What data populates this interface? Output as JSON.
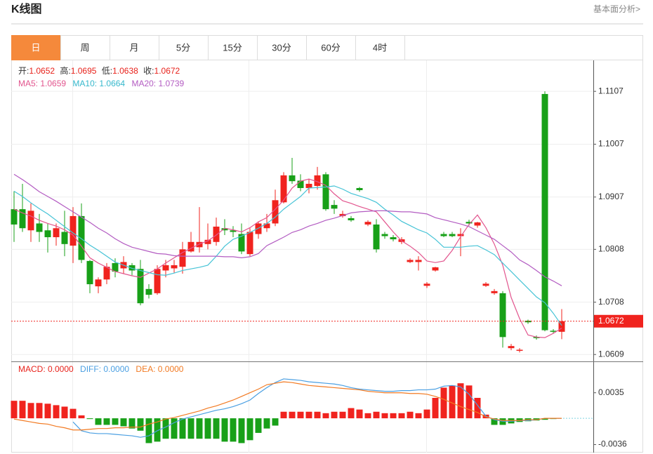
{
  "header": {
    "title": "K线图",
    "link": "基本面分析>"
  },
  "tabs": [
    "日",
    "周",
    "月",
    "5分",
    "15分",
    "30分",
    "60分",
    "4时"
  ],
  "info": {
    "ohlc": [
      {
        "label": "开:",
        "value": "1.0652"
      },
      {
        "label": "高:",
        "value": "1.0695"
      },
      {
        "label": "低:",
        "value": "1.0638"
      },
      {
        "label": "收:",
        "value": "1.0672"
      }
    ],
    "ma": [
      {
        "label": "MA5: ",
        "value": "1.0659"
      },
      {
        "label": "MA10: ",
        "value": "1.0664"
      },
      {
        "label": "MA20: ",
        "value": "1.0739"
      }
    ],
    "macd": [
      {
        "label": "MACD: ",
        "value": "0.0000"
      },
      {
        "label": "DIFF: ",
        "value": "0.0000"
      },
      {
        "label": "DEA: ",
        "value": "0.0000"
      }
    ]
  },
  "chart_data": [
    {
      "type": "candlestick",
      "up_color": "#f0231e",
      "down_color": "#18a018",
      "grid": true,
      "ylim": [
        1.0596,
        1.1163
      ],
      "yticks": [
        1.0609,
        1.0708,
        1.0808,
        1.0907,
        1.1007,
        1.1107
      ],
      "last_price": 1.0672,
      "last_price_color": "#f0231e",
      "open": [
        1.0884,
        1.0884,
        1.0844,
        1.0857,
        1.0844,
        1.0831,
        1.0841,
        1.0815,
        1.0871,
        1.0786,
        1.0738,
        1.0751,
        1.0782,
        1.0772,
        1.0778,
        1.0771,
        1.0733,
        1.0725,
        1.0768,
        1.0772,
        1.0775,
        1.0804,
        1.0812,
        1.0818,
        1.0822,
        1.0848,
        1.0844,
        1.0837,
        1.0799,
        1.0837,
        1.0848,
        1.0857,
        1.0897,
        1.0948,
        1.0938,
        1.0924,
        1.0928,
        1.095,
        1.0892,
        1.0871,
        1.0867,
        1.0924,
        1.0855,
        1.0855,
        1.0837,
        1.0831,
        1.0822,
        1.0784,
        1.0784,
        1.0739,
        1.0768,
        1.0837,
        1.0837,
        1.0833,
        1.086,
        1.0853,
        1.0739,
        1.0725,
        1.0725,
        1.0621,
        1.0616,
        1.0673,
        1.0642,
        1.1102,
        1.0654,
        1.0652
      ],
      "high": [
        1.0918,
        1.0932,
        1.0895,
        1.0875,
        1.0857,
        1.0857,
        1.0881,
        1.0888,
        1.0895,
        1.0788,
        1.0755,
        1.0782,
        1.0791,
        1.0795,
        1.0782,
        1.0788,
        1.0742,
        1.0778,
        1.0788,
        1.0788,
        1.0822,
        1.0841,
        1.0888,
        1.0857,
        1.0868,
        1.0865,
        1.0852,
        1.0857,
        1.0848,
        1.0861,
        1.0875,
        1.0921,
        1.0954,
        1.0981,
        1.095,
        1.0941,
        1.0964,
        1.0954,
        1.0901,
        1.0881,
        1.0871,
        1.0926,
        1.0863,
        1.0865,
        1.0841,
        1.0835,
        1.0831,
        1.0791,
        1.0795,
        1.0746,
        1.0775,
        1.0841,
        1.0841,
        1.0848,
        1.0864,
        1.086,
        1.0746,
        1.0733,
        1.0729,
        1.0629,
        1.0621,
        1.0675,
        1.0645,
        1.1107,
        1.0657,
        1.0695
      ],
      "low": [
        1.0822,
        1.0841,
        1.0822,
        1.0822,
        1.0802,
        1.0815,
        1.0795,
        1.0782,
        1.0782,
        1.0725,
        1.0725,
        1.0742,
        1.0755,
        1.0762,
        1.0759,
        1.0702,
        1.0715,
        1.0722,
        1.0755,
        1.0764,
        1.0762,
        1.0802,
        1.0802,
        1.0808,
        1.0815,
        1.0835,
        1.0831,
        1.0799,
        1.0795,
        1.0828,
        1.0841,
        1.0852,
        1.0895,
        1.0932,
        1.0918,
        1.0914,
        1.0921,
        1.0881,
        1.0875,
        1.0868,
        1.086,
        1.0917,
        1.0852,
        1.0802,
        1.0828,
        1.0823,
        1.0818,
        1.0782,
        1.0768,
        1.0735,
        1.0766,
        1.0831,
        1.0831,
        1.0795,
        1.0853,
        1.0849,
        1.0737,
        1.0722,
        1.0622,
        1.0617,
        1.0613,
        1.0667,
        1.0637,
        1.0653,
        1.0649,
        1.0638
      ],
      "close": [
        1.0855,
        1.0848,
        1.0881,
        1.0841,
        1.0831,
        1.0848,
        1.0818,
        1.0871,
        1.0788,
        1.0742,
        1.0751,
        1.0775,
        1.0766,
        1.0784,
        1.0768,
        1.0706,
        1.0722,
        1.0771,
        1.0778,
        1.0778,
        1.0808,
        1.0822,
        1.0822,
        1.0826,
        1.0851,
        1.0844,
        1.0841,
        1.0804,
        1.0841,
        1.0857,
        1.0857,
        1.0901,
        1.0948,
        1.0937,
        1.0924,
        1.0932,
        1.0948,
        1.0884,
        1.0885,
        1.0875,
        1.0863,
        1.092,
        1.086,
        1.0808,
        1.0833,
        1.0827,
        1.0827,
        1.0788,
        1.0788,
        1.0743,
        1.0774,
        1.0833,
        1.0833,
        1.0837,
        1.0857,
        1.0859,
        1.0743,
        1.0729,
        1.0642,
        1.0625,
        1.0618,
        1.067,
        1.064,
        1.0655,
        1.0652,
        1.0672
      ],
      "series": [
        {
          "color": "#e2558e",
          "values": [
            1.0884,
            1.0877,
            1.0871,
            1.0863,
            1.0857,
            1.0852,
            1.0845,
            1.0835,
            1.0814,
            1.0792,
            1.0782,
            1.0774,
            1.0766,
            1.0762,
            1.0758,
            1.0755,
            1.0763,
            1.0771,
            1.0782,
            1.0792,
            1.0802,
            1.081,
            1.0818,
            1.0824,
            1.0835,
            1.0848,
            1.0845,
            1.0841,
            1.0849,
            1.086,
            1.0868,
            1.0884,
            1.0901,
            1.0924,
            1.0937,
            1.0941,
            1.0936,
            1.0929,
            1.0913,
            1.09,
            1.0895,
            1.0889,
            1.0884,
            1.0879,
            1.086,
            1.0841,
            1.0824,
            1.0814,
            1.0802,
            1.0786,
            1.0783,
            1.0786,
            1.0806,
            1.0832,
            1.0855,
            1.0873,
            1.0849,
            1.0818,
            1.0778,
            1.0717,
            1.0677,
            1.0646,
            1.0642,
            1.0641,
            1.0649,
            1.0659
          ]
        },
        {
          "color": "#45c3d6",
          "values": [
            1.0918,
            1.0908,
            1.0896,
            1.0885,
            1.0875,
            1.0863,
            1.0851,
            1.0839,
            1.0828,
            1.0816,
            1.0806,
            1.0795,
            1.0784,
            1.0778,
            1.0772,
            1.0768,
            1.0764,
            1.076,
            1.0759,
            1.0763,
            1.0768,
            1.0771,
            1.0774,
            1.0778,
            1.0795,
            1.0814,
            1.0827,
            1.0833,
            1.084,
            1.0848,
            1.0857,
            1.0869,
            1.0884,
            1.0896,
            1.0908,
            1.0924,
            1.0925,
            1.0926,
            1.0928,
            1.0922,
            1.0914,
            1.0909,
            1.0904,
            1.0897,
            1.0884,
            1.0873,
            1.0861,
            1.0853,
            1.0845,
            1.0839,
            1.0827,
            1.0812,
            1.0812,
            1.0812,
            1.0814,
            1.0815,
            1.0807,
            1.0798,
            1.0782,
            1.0766,
            1.075,
            1.0734,
            1.0718,
            1.0707,
            1.0687,
            1.0664
          ]
        },
        {
          "color": "#b35cc2",
          "values": [
            1.095,
            1.094,
            1.0929,
            1.0917,
            1.0908,
            1.0899,
            1.0889,
            1.0879,
            1.0869,
            1.0859,
            1.0848,
            1.0839,
            1.0828,
            1.0819,
            1.0812,
            1.0808,
            1.0804,
            1.08,
            1.0799,
            1.0796,
            1.0795,
            1.0795,
            1.0795,
            1.0795,
            1.0795,
            1.0794,
            1.0794,
            1.0792,
            1.0794,
            1.08,
            1.0815,
            1.0823,
            1.0831,
            1.084,
            1.0845,
            1.0852,
            1.0857,
            1.0863,
            1.0867,
            1.0872,
            1.0877,
            1.0879,
            1.088,
            1.0881,
            1.0881,
            1.088,
            1.0879,
            1.0879,
            1.0877,
            1.0875,
            1.0868,
            1.0864,
            1.086,
            1.0856,
            1.0851,
            1.0843,
            1.0835,
            1.0827,
            1.0815,
            1.0803,
            1.0788,
            1.0779,
            1.0768,
            1.0756,
            1.0748,
            1.0739
          ]
        }
      ]
    },
    {
      "type": "macd",
      "up_color": "#f0231e",
      "down_color": "#18a018",
      "ylim": [
        -0.0047,
        0.0078
      ],
      "yticks": [
        -0.0036,
        0.0035
      ],
      "values": [
        0.0024,
        0.0024,
        0.0021,
        0.0021,
        0.002,
        0.0018,
        0.0016,
        0.0013,
        0.0004,
        -0.0001,
        -0.0009,
        -0.0009,
        -0.0009,
        -0.0011,
        -0.0014,
        -0.0017,
        -0.0034,
        -0.0032,
        -0.0028,
        -0.0028,
        -0.0028,
        -0.0028,
        -0.0028,
        -0.0028,
        -0.0028,
        -0.0032,
        -0.0032,
        -0.0034,
        -0.003,
        -0.002,
        -0.0014,
        -0.001,
        0.0009,
        0.0009,
        0.0009,
        0.0009,
        0.0009,
        0.0007,
        0.0009,
        0.0009,
        0.0014,
        0.0012,
        0.0007,
        0.0009,
        0.0007,
        0.0007,
        0.0007,
        0.0009,
        0.0007,
        0.0012,
        0.0028,
        0.0042,
        0.0045,
        0.0048,
        0.0045,
        0.0028,
        0.0005,
        -0.0009,
        -0.0009,
        -0.0007,
        -0.0005,
        -0.0004,
        -0.0003,
        -0.0002,
        -0.0001,
        0
      ],
      "series": [
        {
          "color": "#4a9fe2",
          "values": [
            null,
            null,
            null,
            null,
            null,
            null,
            null,
            -0.0005,
            -0.0017,
            -0.002,
            -0.0021,
            -0.0021,
            -0.0022,
            -0.0023,
            -0.0024,
            -0.0026,
            -0.0024,
            -0.0017,
            -0.0012,
            -0.0006,
            -0.0001,
            0.0002,
            0.0005,
            0.0008,
            0.0011,
            0.0013,
            0.0016,
            0.002,
            0.0025,
            0.0034,
            0.0042,
            0.0049,
            0.0054,
            0.0053,
            0.0052,
            0.005,
            0.0049,
            0.0048,
            0.0047,
            0.0045,
            0.0042,
            0.004,
            0.0039,
            0.0038,
            0.0037,
            0.0037,
            0.0038,
            0.0038,
            0.0039,
            0.0039,
            0.004,
            0.0044,
            0.0045,
            0.0043,
            0.0033,
            0.0018,
            0.0003,
            -0.0002,
            -0.0004,
            -0.0004,
            -0.0003,
            -0.0003,
            -0.0002,
            0,
            0,
            0
          ]
        },
        {
          "color": "#f27a22",
          "values": [
            -0.0001,
            -0.0003,
            -0.0005,
            -0.0007,
            -0.0008,
            -0.0011,
            -0.0013,
            -0.0016,
            -0.0016,
            -0.0015,
            -0.0014,
            -0.0014,
            -0.0013,
            -0.0013,
            -0.0012,
            -0.0012,
            -0.0008,
            -0.0005,
            -0.0001,
            0.0001,
            0.0004,
            0.0007,
            0.001,
            0.0014,
            0.0017,
            0.0021,
            0.0025,
            0.003,
            0.0035,
            0.004,
            0.0046,
            0.0048,
            0.005,
            0.0049,
            0.0047,
            0.0045,
            0.0044,
            0.0043,
            0.0042,
            0.0041,
            0.004,
            0.0039,
            0.0037,
            0.0036,
            0.0035,
            0.0035,
            0.0035,
            0.0034,
            0.0034,
            0.0033,
            0.003,
            0.0026,
            0.0021,
            0.0016,
            0.0012,
            0.0008,
            0.0002,
            -0.0001,
            -0.0003,
            -0.0003,
            -0.0003,
            -0.0002,
            -0.0002,
            0,
            0,
            0
          ]
        }
      ]
    }
  ]
}
